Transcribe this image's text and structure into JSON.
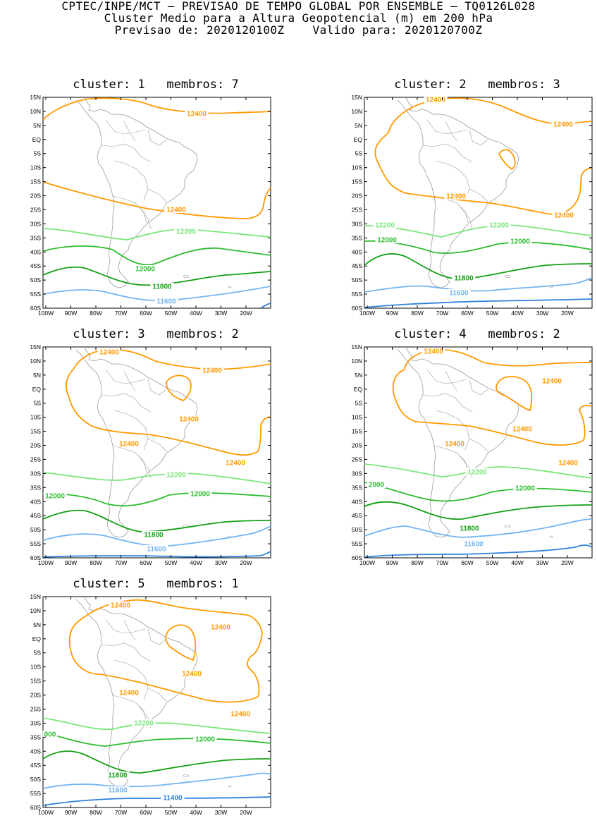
{
  "header": {
    "line1": "CPTEC/INPE/MCT – PREVISAO DE TEMPO GLOBAL POR ENSEMBLE – TQ0126L028",
    "line2": "Cluster Medio para a Altura Geopotencial (m) em 200 hPa",
    "line3": "Previsao de: 2020120100Z    Valido para: 2020120700Z"
  },
  "axes": {
    "lat_labels": [
      "15N",
      "10N",
      "5N",
      "EQ",
      "5S",
      "10S",
      "15S",
      "20S",
      "25S",
      "30S",
      "35S",
      "40S",
      "45S",
      "50S",
      "55S",
      "60S"
    ],
    "lon_labels": [
      "100W",
      "90W",
      "80W",
      "70W",
      "60W",
      "50W",
      "40W",
      "30W",
      "20W"
    ]
  },
  "colors": {
    "c12400": "#ff9900",
    "c12200": "#7ae67a",
    "c12000": "#2ebd2e",
    "c11800": "#14a014",
    "c11600": "#73b4f0",
    "c11400": "#2e82dc",
    "coast": "#9a9a9a"
  },
  "panels": [
    {
      "title": "cluster: 1   membros: 7",
      "labels": [
        {
          "text": "12400",
          "color": "#ff9900"
        },
        {
          "text": "12400",
          "color": "#ff9900"
        },
        {
          "text": "12200",
          "color": "#7ae67a"
        },
        {
          "text": "12000",
          "color": "#2ebd2e"
        },
        {
          "text": "11800",
          "color": "#14a014"
        },
        {
          "text": "11600",
          "color": "#73b4f0"
        }
      ]
    },
    {
      "title": "cluster: 2   membros: 3",
      "labels": [
        {
          "text": "12400",
          "color": "#ff9900"
        },
        {
          "text": "12400",
          "color": "#ff9900"
        },
        {
          "text": "12400",
          "color": "#ff9900"
        },
        {
          "text": "12400",
          "color": "#ff9900"
        },
        {
          "text": "12200",
          "color": "#7ae67a"
        },
        {
          "text": "12200",
          "color": "#7ae67a"
        },
        {
          "text": "12000",
          "color": "#2ebd2e"
        },
        {
          "text": "12000",
          "color": "#2ebd2e"
        },
        {
          "text": "11800",
          "color": "#14a014"
        },
        {
          "text": "11600",
          "color": "#73b4f0"
        }
      ]
    },
    {
      "title": "cluster: 3   membros: 2",
      "labels": [
        {
          "text": "12400",
          "color": "#ff9900"
        },
        {
          "text": "12400",
          "color": "#ff9900"
        },
        {
          "text": "12400",
          "color": "#ff9900"
        },
        {
          "text": "12400",
          "color": "#ff9900"
        },
        {
          "text": "12400",
          "color": "#ff9900"
        },
        {
          "text": "12200",
          "color": "#7ae67a"
        },
        {
          "text": "12000",
          "color": "#2ebd2e"
        },
        {
          "text": "12000",
          "color": "#2ebd2e"
        },
        {
          "text": "11800",
          "color": "#14a014"
        },
        {
          "text": "11600",
          "color": "#73b4f0"
        }
      ]
    },
    {
      "title": "cluster: 4   membros: 2",
      "labels": [
        {
          "text": "12400",
          "color": "#ff9900"
        },
        {
          "text": "12400",
          "color": "#ff9900"
        },
        {
          "text": "12400",
          "color": "#ff9900"
        },
        {
          "text": "12400",
          "color": "#ff9900"
        },
        {
          "text": "12400",
          "color": "#ff9900"
        },
        {
          "text": "12200",
          "color": "#7ae67a"
        },
        {
          "text": "2000",
          "color": "#2ebd2e"
        },
        {
          "text": "12000",
          "color": "#2ebd2e"
        },
        {
          "text": "11800",
          "color": "#14a014"
        },
        {
          "text": "11600",
          "color": "#73b4f0"
        }
      ]
    },
    {
      "title": "cluster: 5   membros: 1",
      "labels": [
        {
          "text": "12400",
          "color": "#ff9900"
        },
        {
          "text": "12400",
          "color": "#ff9900"
        },
        {
          "text": "12400",
          "color": "#ff9900"
        },
        {
          "text": "12400",
          "color": "#ff9900"
        },
        {
          "text": "12400",
          "color": "#ff9900"
        },
        {
          "text": "12200",
          "color": "#7ae67a"
        },
        {
          "text": "000",
          "color": "#2ebd2e"
        },
        {
          "text": "12000",
          "color": "#2ebd2e"
        },
        {
          "text": "11800",
          "color": "#14a014"
        },
        {
          "text": "11600",
          "color": "#73b4f0"
        },
        {
          "text": "11400",
          "color": "#2e82dc"
        }
      ]
    }
  ]
}
